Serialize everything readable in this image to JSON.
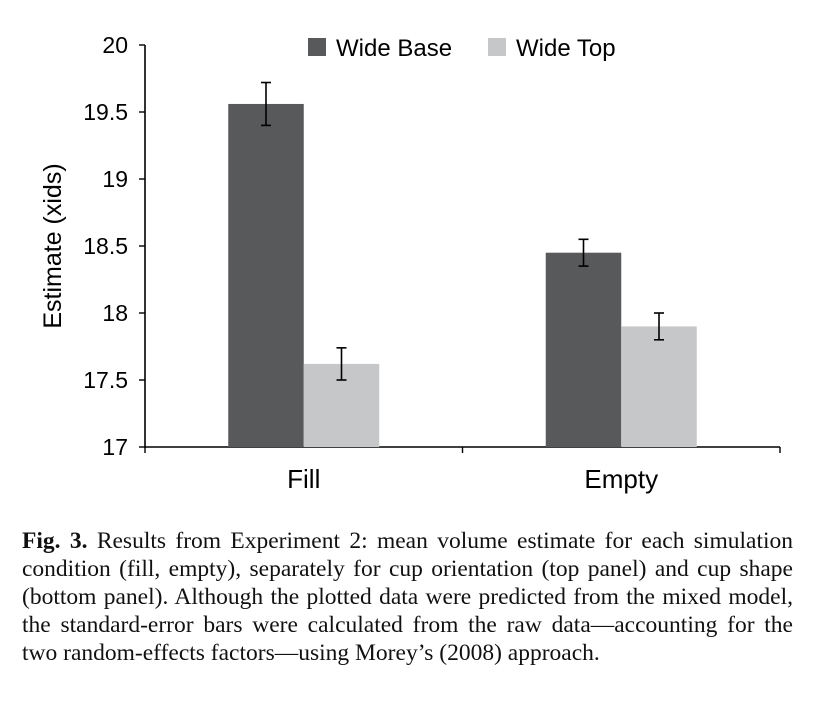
{
  "chart_data": {
    "type": "bar",
    "title": "",
    "xlabel": "",
    "ylabel": "Estimate (xids)",
    "ylim": [
      17,
      20
    ],
    "yticks": [
      17,
      17.5,
      18,
      18.5,
      19,
      19.5,
      20
    ],
    "ytick_labels": [
      "17",
      "17.5",
      "18",
      "18.5",
      "19",
      "19.5",
      "20"
    ],
    "categories": [
      "Fill",
      "Empty"
    ],
    "grid": false,
    "legend_position": "top",
    "series": [
      {
        "name": "Wide Base",
        "color": "#58595b",
        "values": [
          19.56,
          18.45
        ],
        "errors": [
          0.16,
          0.1
        ]
      },
      {
        "name": "Wide Top",
        "color": "#c6c7c9",
        "values": [
          17.62,
          17.9
        ],
        "errors": [
          0.12,
          0.1
        ]
      }
    ]
  },
  "caption": {
    "label": "Fig. 3.",
    "text": "Results from Experiment 2: mean volume estimate for each simulation condition (fill, empty), separately for cup orientation (top panel) and cup shape (bottom panel). Although the plotted data were predicted from the mixed model, the standard-error bars were calculated from the raw data—accounting for the two random-effects factors—using Morey’s (2008) approach."
  }
}
